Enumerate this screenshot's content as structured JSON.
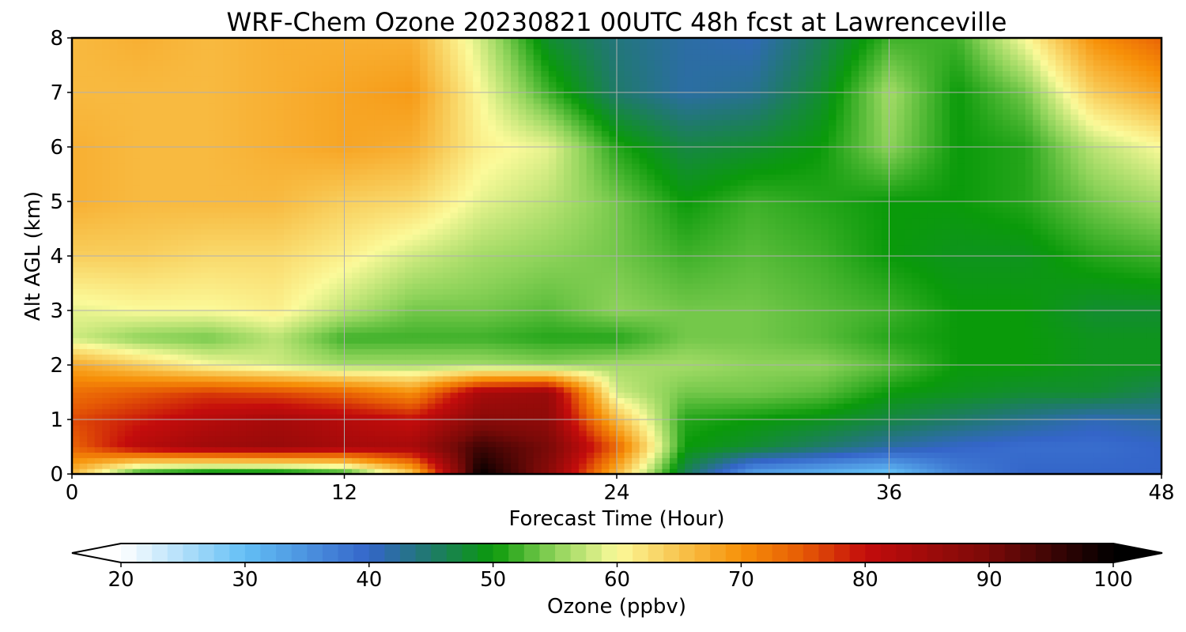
{
  "chart_data": {
    "type": "heatmap",
    "title": "WRF-Chem Ozone  20230821 00UTC 48h fcst at Lawrenceville",
    "xlabel": "Forecast Time (Hour)",
    "ylabel": "Alt AGL (km)",
    "xlim": [
      0,
      48
    ],
    "ylim": [
      0,
      8
    ],
    "xticks": [
      0,
      12,
      24,
      36,
      48
    ],
    "yticks": [
      0,
      1,
      2,
      3,
      4,
      5,
      6,
      7,
      8
    ],
    "grid": true,
    "colorbar": {
      "label": "Ozone  (ppbv)",
      "range": [
        20,
        100
      ],
      "ticks": [
        20,
        30,
        40,
        50,
        60,
        70,
        80,
        90,
        100
      ],
      "extend": "both",
      "stops": [
        {
          "v": 20,
          "c": "#ffffff"
        },
        {
          "v": 30,
          "c": "#63bff5"
        },
        {
          "v": 40,
          "c": "#3465c9"
        },
        {
          "v": 45,
          "c": "#1f7a6a"
        },
        {
          "v": 50,
          "c": "#0a9a0a"
        },
        {
          "v": 55,
          "c": "#8ed35a"
        },
        {
          "v": 60,
          "c": "#fbfa9a"
        },
        {
          "v": 65,
          "c": "#f8c44e"
        },
        {
          "v": 70,
          "c": "#f79008"
        },
        {
          "v": 75,
          "c": "#e65a05"
        },
        {
          "v": 80,
          "c": "#c40c0c"
        },
        {
          "v": 90,
          "c": "#7a0a08"
        },
        {
          "v": 100,
          "c": "#000000"
        }
      ]
    },
    "x_hours": [
      0,
      3,
      6,
      9,
      12,
      15,
      18,
      21,
      24,
      27,
      30,
      33,
      36,
      39,
      42,
      45,
      48
    ],
    "altitudes_km": [
      0,
      0.5,
      1,
      1.5,
      2,
      2.5,
      3,
      4,
      5,
      6,
      7,
      8
    ],
    "ozone_ppbv": [
      [
        66,
        50,
        47,
        47,
        50,
        64,
        100,
        88,
        66,
        46,
        33,
        31,
        29,
        37,
        40,
        40,
        40
      ],
      [
        74,
        82,
        85,
        86,
        84,
        84,
        95,
        90,
        74,
        50,
        48,
        45,
        42,
        40,
        39,
        39,
        40
      ],
      [
        76,
        79,
        82,
        84,
        82,
        80,
        88,
        87,
        66,
        51,
        50,
        49,
        47,
        45,
        43,
        41,
        42
      ],
      [
        73,
        75,
        77,
        76,
        74,
        70,
        84,
        86,
        58,
        54,
        54,
        53,
        50,
        49,
        48,
        48,
        46
      ],
      [
        68,
        64,
        60,
        58,
        56,
        56,
        56,
        55,
        56,
        56,
        55,
        55,
        53,
        50,
        50,
        49,
        49
      ],
      [
        58,
        55,
        54,
        57,
        52,
        52,
        52,
        51,
        51,
        54,
        54,
        53,
        51,
        50,
        50,
        49,
        49
      ],
      [
        59,
        60,
        60,
        61,
        57,
        54,
        54,
        53,
        55,
        54,
        54,
        53,
        52,
        50,
        50,
        48,
        48
      ],
      [
        64,
        64,
        63,
        63,
        61,
        58,
        56,
        55,
        54,
        52,
        53,
        52,
        50,
        49,
        49,
        51,
        52
      ],
      [
        67,
        66,
        66,
        66,
        64,
        63,
        59,
        57,
        54,
        50,
        52,
        51,
        50,
        50,
        51,
        54,
        56
      ],
      [
        67,
        66,
        66,
        67,
        68,
        67,
        61,
        59,
        51,
        47,
        48,
        50,
        55,
        50,
        51,
        57,
        60
      ],
      [
        66,
        66,
        66,
        67,
        68,
        69,
        60,
        52,
        45,
        42,
        43,
        48,
        56,
        50,
        54,
        64,
        68
      ],
      [
        66,
        67,
        66,
        67,
        67,
        67,
        58,
        48,
        44,
        42,
        41,
        46,
        52,
        52,
        60,
        70,
        74
      ]
    ]
  }
}
